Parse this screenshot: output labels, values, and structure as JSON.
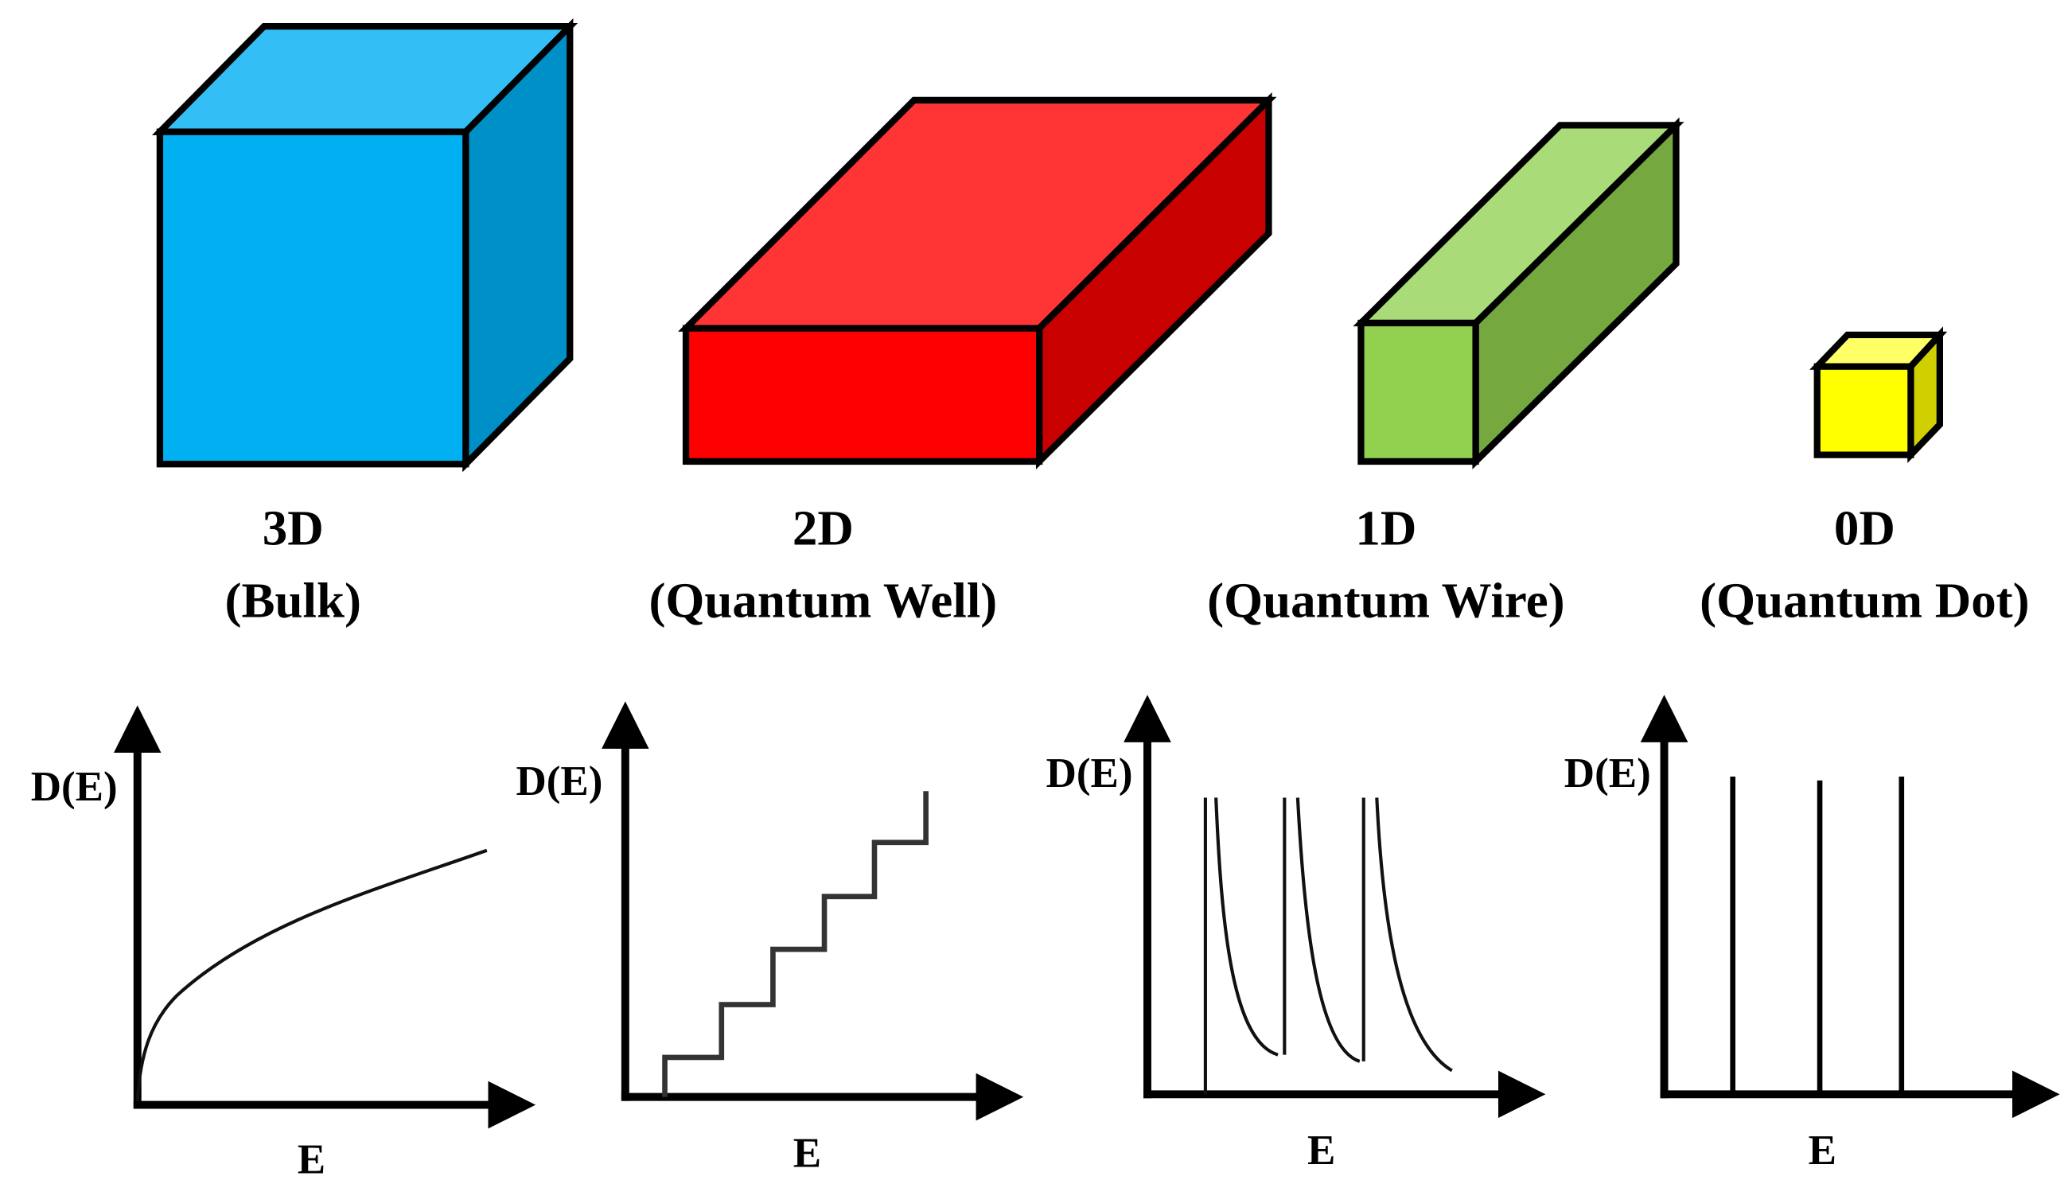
{
  "panels": [
    {
      "dimension": "3D",
      "name": "(Bulk)",
      "color": "#00b0f0",
      "ylabel": "D(E)",
      "xlabel": "E"
    },
    {
      "dimension": "2D",
      "name": "(Quantum Well)",
      "color": "#ff0000",
      "ylabel": "D(E)",
      "xlabel": "E"
    },
    {
      "dimension": "1D",
      "name": "(Quantum Wire)",
      "color": "#92d050",
      "ylabel": "D(E)",
      "xlabel": "E"
    },
    {
      "dimension": "0D",
      "name": "(Quantum Dot)",
      "color": "#ffff00",
      "ylabel": "D(E)",
      "xlabel": "E"
    }
  ]
}
